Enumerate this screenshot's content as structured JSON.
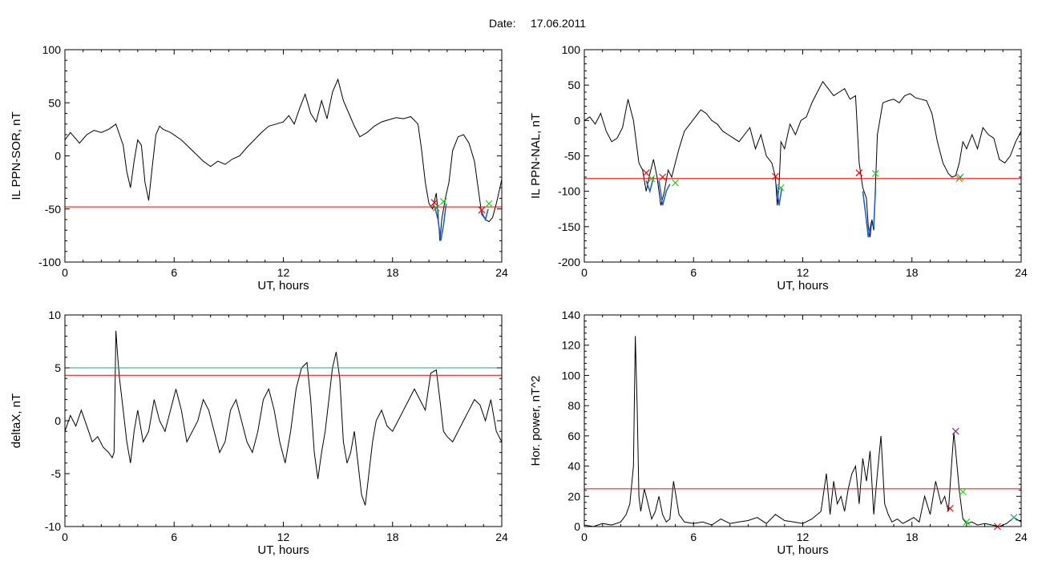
{
  "header": {
    "date_label": "Date:",
    "date_value": "17.06.2011"
  },
  "chart_data": [
    {
      "id": "sor",
      "type": "line",
      "xlabel": "UT, hours",
      "ylabel": "IL PPN-SOR, nT",
      "xlim": [
        0,
        24
      ],
      "ylim": [
        -100,
        100
      ],
      "xticks": [
        0,
        6,
        12,
        18,
        24
      ],
      "yticks": [
        -100,
        -50,
        0,
        50,
        100
      ],
      "colors": {
        "main": "#000000",
        "highlight": "#1f5fd6",
        "threshold": "#ff0000",
        "start_marker": "#ff0000",
        "end_marker": "#22cc22"
      },
      "series": [
        {
          "x": [
            0,
            0.3,
            0.5,
            0.8,
            1.2,
            1.6,
            2.0,
            2.4,
            2.8,
            3.0,
            3.2,
            3.4,
            3.6,
            3.8,
            4.0,
            4.2,
            4.4,
            4.6,
            4.8,
            5.0,
            5.2,
            5.4,
            5.8,
            6.4,
            7.0,
            7.6,
            8.0,
            8.4,
            8.8,
            9.2,
            9.6,
            10.0,
            10.4,
            10.8,
            11.2,
            11.6,
            12.0,
            12.3,
            12.6,
            12.9,
            13.2,
            13.5,
            13.8,
            14.1,
            14.4,
            14.7,
            15.0,
            15.3,
            15.6,
            15.9,
            16.2,
            16.6,
            17.0,
            17.4,
            17.8,
            18.2,
            18.6,
            19.0,
            19.4,
            19.6,
            19.8,
            20.0,
            20.2,
            20.4,
            20.5,
            20.6,
            20.7,
            20.9,
            21.1,
            21.3,
            21.6,
            21.9,
            22.2,
            22.5,
            22.7,
            22.9,
            23.1,
            23.3,
            23.5,
            23.7,
            23.9,
            24.0
          ],
          "y": [
            15,
            22,
            18,
            12,
            20,
            24,
            22,
            25,
            30,
            20,
            10,
            -15,
            -30,
            -5,
            15,
            10,
            -25,
            -42,
            -10,
            20,
            28,
            25,
            22,
            15,
            5,
            -5,
            -10,
            -5,
            -8,
            -3,
            0,
            8,
            15,
            22,
            28,
            30,
            32,
            38,
            30,
            45,
            58,
            40,
            32,
            52,
            35,
            60,
            72,
            52,
            40,
            28,
            18,
            22,
            28,
            32,
            34,
            36,
            35,
            37,
            30,
            5,
            -25,
            -45,
            -50,
            -35,
            -55,
            -80,
            -60,
            -40,
            -25,
            5,
            18,
            20,
            12,
            -5,
            -30,
            -55,
            -60,
            -62,
            -58,
            -45,
            -30,
            -22
          ]
        },
        {
          "x": [
            20.2,
            20.35,
            20.5,
            20.65,
            20.8,
            20.95
          ],
          "y": [
            -45,
            -50,
            -60,
            -80,
            -65,
            -45
          ]
        },
        {
          "x": [
            22.8,
            22.95,
            23.1,
            23.25
          ],
          "y": [
            -48,
            -55,
            -60,
            -50
          ]
        }
      ],
      "threshold": [
        {
          "y": -48,
          "color": "#ff0000"
        }
      ],
      "markers": [
        {
          "x": 20.3,
          "y": -44,
          "color": "#ff0000"
        },
        {
          "x": 20.4,
          "y": -49,
          "color": "#22aa55"
        },
        {
          "x": 20.8,
          "y": -43,
          "color": "#22cc22"
        },
        {
          "x": 22.9,
          "y": -51,
          "color": "#ff0000"
        },
        {
          "x": 23.3,
          "y": -45,
          "color": "#22cc22"
        }
      ]
    },
    {
      "id": "nal",
      "type": "line",
      "xlabel": "UT, hours",
      "ylabel": "IL PPN-NAL, nT",
      "xlim": [
        0,
        24
      ],
      "ylim": [
        -200,
        100
      ],
      "xticks": [
        0,
        6,
        12,
        18,
        24
      ],
      "yticks": [
        -200,
        -150,
        -100,
        -50,
        0,
        50,
        100
      ],
      "colors": {
        "main": "#000000",
        "highlight": "#1f5fd6",
        "threshold": "#ff0000",
        "start_marker": "#ff0000",
        "end_marker": "#22cc22"
      },
      "series": [
        {
          "x": [
            0,
            0.3,
            0.6,
            0.9,
            1.2,
            1.5,
            1.8,
            2.1,
            2.4,
            2.7,
            3.0,
            3.2,
            3.4,
            3.6,
            3.8,
            4.0,
            4.2,
            4.4,
            4.6,
            4.8,
            5.0,
            5.2,
            5.5,
            5.8,
            6.1,
            6.4,
            6.7,
            7.0,
            7.3,
            7.6,
            7.9,
            8.2,
            8.5,
            8.8,
            9.1,
            9.4,
            9.7,
            10.0,
            10.3,
            10.5,
            10.6,
            10.7,
            10.8,
            11.0,
            11.3,
            11.6,
            11.9,
            12.2,
            12.5,
            12.8,
            13.1,
            13.4,
            13.7,
            14.0,
            14.3,
            14.6,
            14.9,
            15.1,
            15.3,
            15.5,
            15.6,
            15.7,
            15.8,
            15.9,
            16.0,
            16.1,
            16.2,
            16.4,
            16.7,
            17.0,
            17.3,
            17.6,
            17.9,
            18.2,
            18.5,
            18.8,
            19.1,
            19.4,
            19.7,
            20.0,
            20.2,
            20.4,
            20.6,
            20.8,
            21.0,
            21.3,
            21.6,
            21.9,
            22.2,
            22.5,
            22.8,
            23.1,
            23.4,
            23.7,
            24.0
          ],
          "y": [
            0,
            5,
            -5,
            10,
            -15,
            -30,
            -25,
            -10,
            30,
            0,
            -60,
            -70,
            -100,
            -75,
            -55,
            -80,
            -120,
            -100,
            -70,
            -80,
            -60,
            -40,
            -15,
            -5,
            5,
            15,
            10,
            0,
            -5,
            -15,
            -20,
            -25,
            -30,
            -20,
            -10,
            -40,
            -20,
            -50,
            -60,
            -80,
            -120,
            -90,
            -30,
            -40,
            -5,
            -20,
            0,
            5,
            25,
            40,
            55,
            45,
            35,
            40,
            45,
            30,
            35,
            -60,
            -95,
            -110,
            -150,
            -165,
            -140,
            -155,
            -90,
            -20,
            -5,
            25,
            28,
            30,
            25,
            35,
            38,
            32,
            30,
            28,
            10,
            -30,
            -60,
            -75,
            -80,
            -78,
            -60,
            -30,
            -40,
            -20,
            -40,
            -10,
            -20,
            -25,
            -55,
            -60,
            -50,
            -30,
            -15
          ]
        },
        {
          "x": [
            3.4,
            3.6,
            3.8
          ],
          "y": [
            -85,
            -100,
            -80
          ]
        },
        {
          "x": [
            4.1,
            4.3,
            4.5,
            4.7
          ],
          "y": [
            -85,
            -120,
            -100,
            -90
          ]
        },
        {
          "x": [
            10.55,
            10.7,
            10.85
          ],
          "y": [
            -90,
            -120,
            -95
          ]
        },
        {
          "x": [
            15.3,
            15.45,
            15.6,
            15.75,
            15.9,
            16.0
          ],
          "y": [
            -100,
            -130,
            -165,
            -145,
            -150,
            -95
          ]
        }
      ],
      "threshold": [
        {
          "y": -82,
          "color": "#ff0000"
        }
      ],
      "markers": [
        {
          "x": 3.4,
          "y": -74,
          "color": "#ff0000"
        },
        {
          "x": 3.7,
          "y": -82,
          "color": "#22cc22"
        },
        {
          "x": 4.3,
          "y": -80,
          "color": "#ff0000"
        },
        {
          "x": 5.0,
          "y": -88,
          "color": "#22cc22"
        },
        {
          "x": 10.5,
          "y": -79,
          "color": "#ff0000"
        },
        {
          "x": 10.8,
          "y": -95,
          "color": "#22cc22"
        },
        {
          "x": 15.1,
          "y": -74,
          "color": "#ff0000"
        },
        {
          "x": 16.0,
          "y": -75,
          "color": "#22cc22"
        },
        {
          "x": 20.6,
          "y": -82,
          "color": "#ff6600"
        },
        {
          "x": 20.65,
          "y": -80,
          "color": "#22aa55"
        }
      ]
    },
    {
      "id": "deltax",
      "type": "line",
      "xlabel": "UT, hours",
      "ylabel": "deltaX, nT",
      "xlim": [
        0,
        24
      ],
      "ylim": [
        -10,
        10
      ],
      "xticks": [
        0,
        6,
        12,
        18,
        24
      ],
      "yticks": [
        -10,
        -5,
        0,
        5,
        10
      ],
      "colors": {
        "main": "#000000",
        "threshold": "#ff0000"
      },
      "series": [
        {
          "x": [
            0,
            0.3,
            0.6,
            0.9,
            1.2,
            1.5,
            1.8,
            2.1,
            2.4,
            2.6,
            2.7,
            2.8,
            2.9,
            3.0,
            3.2,
            3.4,
            3.6,
            3.8,
            4.0,
            4.3,
            4.6,
            4.9,
            5.2,
            5.5,
            5.8,
            6.1,
            6.4,
            6.7,
            7.0,
            7.3,
            7.6,
            7.9,
            8.2,
            8.5,
            8.8,
            9.1,
            9.4,
            9.7,
            10.0,
            10.3,
            10.6,
            10.9,
            11.2,
            11.5,
            11.8,
            12.1,
            12.4,
            12.7,
            13.0,
            13.3,
            13.5,
            13.7,
            13.9,
            14.1,
            14.3,
            14.5,
            14.7,
            14.9,
            15.1,
            15.3,
            15.5,
            15.7,
            15.9,
            16.1,
            16.3,
            16.5,
            16.7,
            16.9,
            17.1,
            17.4,
            17.7,
            18.0,
            18.3,
            18.6,
            18.9,
            19.2,
            19.5,
            19.8,
            20.1,
            20.4,
            20.6,
            20.8,
            21.0,
            21.3,
            21.6,
            21.9,
            22.2,
            22.5,
            22.8,
            23.1,
            23.4,
            23.7,
            24.0
          ],
          "y": [
            -1,
            0.5,
            -0.5,
            1,
            -0.5,
            -2,
            -1.5,
            -2.5,
            -3,
            -3.5,
            -3,
            8.5,
            6,
            4,
            1,
            -2,
            -4,
            -1,
            1,
            -2,
            -1,
            2,
            0,
            -1,
            1,
            3,
            1,
            -2,
            -1,
            0,
            2,
            1,
            -1,
            -3,
            -2,
            1,
            2,
            0,
            -2,
            -3,
            -1,
            2,
            3,
            1,
            -2,
            -4,
            -1,
            3,
            5,
            5.5,
            2,
            -3,
            -5.5,
            -3,
            -1,
            2,
            5,
            6.5,
            4,
            -2,
            -4,
            -3,
            -1,
            -4,
            -7,
            -8,
            -5,
            -2,
            0,
            1,
            -0.5,
            -1,
            0,
            1,
            2,
            3,
            2,
            1,
            4.5,
            4.8,
            2,
            -1,
            -1.5,
            -2,
            -1,
            0,
            1,
            2,
            1.5,
            0,
            2,
            -1,
            -2
          ]
        }
      ],
      "threshold": [
        {
          "y": 5,
          "color": "#2a9d8f"
        },
        {
          "y": 4.3,
          "color": "#ff0000"
        }
      ],
      "markers": []
    },
    {
      "id": "power",
      "type": "line",
      "xlabel": "UT, hours",
      "ylabel": "Hor. power, nT^2",
      "xlim": [
        0,
        24
      ],
      "ylim": [
        0,
        140
      ],
      "xticks": [
        0,
        6,
        12,
        18,
        24
      ],
      "yticks": [
        0,
        20,
        40,
        60,
        80,
        100,
        120,
        140
      ],
      "colors": {
        "main": "#000000",
        "threshold": "#ff0000"
      },
      "series": [
        {
          "x": [
            0,
            0.5,
            1.0,
            1.5,
            2.0,
            2.3,
            2.5,
            2.7,
            2.8,
            2.9,
            3.0,
            3.1,
            3.3,
            3.5,
            3.7,
            3.9,
            4.1,
            4.3,
            4.5,
            4.7,
            4.9,
            5.2,
            5.5,
            6.0,
            6.5,
            7.0,
            7.5,
            8.0,
            8.5,
            9.0,
            9.5,
            10.0,
            10.5,
            11.0,
            11.5,
            12.0,
            12.5,
            13.0,
            13.3,
            13.5,
            13.7,
            13.9,
            14.1,
            14.3,
            14.5,
            14.7,
            14.9,
            15.1,
            15.3,
            15.5,
            15.7,
            15.9,
            16.1,
            16.3,
            16.5,
            16.7,
            16.9,
            17.2,
            17.5,
            17.8,
            18.1,
            18.4,
            18.7,
            19.0,
            19.3,
            19.6,
            19.8,
            20.0,
            20.2,
            20.3,
            20.4,
            20.6,
            20.8,
            21.0,
            21.3,
            21.6,
            22.0,
            22.4,
            22.8,
            23.2,
            23.6,
            24.0
          ],
          "y": [
            1,
            0,
            2,
            1,
            3,
            8,
            15,
            40,
            126,
            80,
            20,
            10,
            25,
            15,
            5,
            10,
            20,
            8,
            3,
            5,
            30,
            8,
            3,
            2,
            3,
            1,
            5,
            2,
            3,
            4,
            6,
            2,
            8,
            4,
            3,
            2,
            5,
            10,
            35,
            8,
            30,
            15,
            20,
            10,
            25,
            35,
            40,
            15,
            45,
            30,
            50,
            8,
            35,
            60,
            15,
            8,
            3,
            5,
            2,
            4,
            6,
            3,
            20,
            8,
            30,
            15,
            20,
            10,
            45,
            62,
            50,
            24,
            5,
            2,
            3,
            1,
            2,
            1,
            0,
            2,
            6,
            3
          ]
        }
      ],
      "threshold": [
        {
          "y": 25,
          "color": "#ff0000"
        }
      ],
      "markers": [
        {
          "x": 20.1,
          "y": 12,
          "color": "#ff0000"
        },
        {
          "x": 20.4,
          "y": 63,
          "color": "#7a2a8a"
        },
        {
          "x": 20.8,
          "y": 23,
          "color": "#22cc22"
        },
        {
          "x": 21.0,
          "y": 3,
          "color": "#22cc22"
        },
        {
          "x": 22.7,
          "y": 0,
          "color": "#ff0000"
        },
        {
          "x": 23.6,
          "y": 6,
          "color": "#2a9d8f"
        }
      ]
    }
  ]
}
